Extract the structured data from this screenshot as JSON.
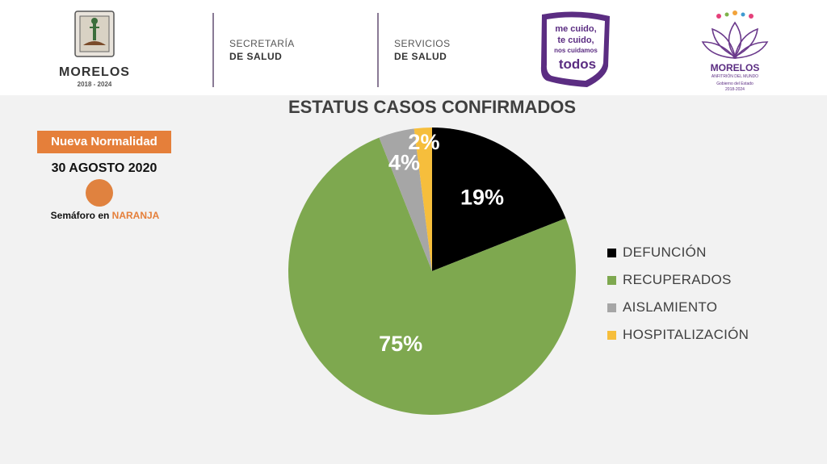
{
  "header": {
    "morelos_logo": {
      "name": "MORELOS",
      "years": "2018 - 2024"
    },
    "dept1": {
      "line1": "SECRETARÍA",
      "line2": "DE SALUD"
    },
    "dept2": {
      "line1": "SERVICIOS",
      "line2": "DE SALUD"
    },
    "campaign_logo": {
      "line1": "me cuido,",
      "line2": "te cuido,",
      "line3": "nos cuidamos",
      "line4": "todos"
    },
    "state_logo": {
      "name": "MORELOS",
      "tagline": "ANFITRIÓN DEL MUNDO",
      "sub1": "Gobierno del Estado",
      "sub2": "2018-2024"
    }
  },
  "status_panel": {
    "badge": "Nueva Normalidad",
    "date": "30 AGOSTO 2020",
    "semaforo_prefix": "Semáforo en ",
    "semaforo_color_word": "NARANJA",
    "semaforo_color": "#e0823f"
  },
  "chart_data": {
    "type": "pie",
    "title": "ESTATUS CASOS CONFIRMADOS",
    "categories": [
      "DEFUNCIÓN",
      "RECUPERADOS",
      "AISLAMIENTO",
      "HOSPITALIZACIÓN"
    ],
    "values": [
      19,
      75,
      4,
      2
    ],
    "labels": [
      "19%",
      "75%",
      "4%",
      "2%"
    ],
    "colors": [
      "#000000",
      "#7ea84f",
      "#a6a6a6",
      "#f6be3c"
    ],
    "legend_position": "right"
  }
}
